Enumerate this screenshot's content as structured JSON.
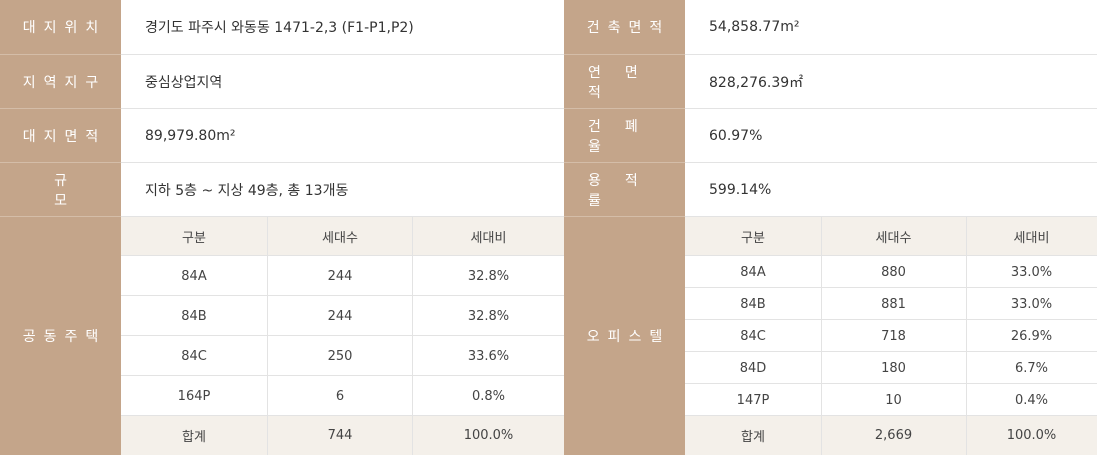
{
  "info": {
    "left": [
      {
        "label": "대지위치",
        "value": "경기도 파주시 와동동 1471-2,3 (F1-P1,P2)"
      },
      {
        "label": "지역지구",
        "value": "중심상업지역"
      },
      {
        "label": "대지면적",
        "value": "89,979.80m²"
      },
      {
        "label": "규모",
        "value": "지하 5층 ~ 지상 49층, 총 13개동"
      }
    ],
    "right": [
      {
        "label": "건축면적",
        "value": "54,858.77m²"
      },
      {
        "label": "연면적",
        "value": "828,276.39㎡"
      },
      {
        "label": "건폐율",
        "value": "60.97%"
      },
      {
        "label": "용적률",
        "value": "599.14%"
      }
    ]
  },
  "apartment": {
    "label": "공동주택",
    "headers": [
      "구분",
      "세대수",
      "세대비"
    ],
    "rows": [
      [
        "84A",
        "244",
        "32.8%"
      ],
      [
        "84B",
        "244",
        "32.8%"
      ],
      [
        "84C",
        "250",
        "33.6%"
      ],
      [
        "164P",
        "6",
        "0.8%"
      ]
    ],
    "total": [
      "합계",
      "744",
      "100.0%"
    ]
  },
  "officetel": {
    "label": "오피스텔",
    "headers": [
      "구분",
      "세대수",
      "세대비"
    ],
    "rows": [
      [
        "84A",
        "880",
        "33.0%"
      ],
      [
        "84B",
        "881",
        "33.0%"
      ],
      [
        "84C",
        "718",
        "26.9%"
      ],
      [
        "84D",
        "180",
        "6.7%"
      ],
      [
        "147P",
        "10",
        "0.4%"
      ]
    ],
    "total": [
      "합계",
      "2,669",
      "100.0%"
    ]
  },
  "colors": {
    "label_bg": "#c4a58a",
    "header_bg": "#f4f0ea"
  }
}
